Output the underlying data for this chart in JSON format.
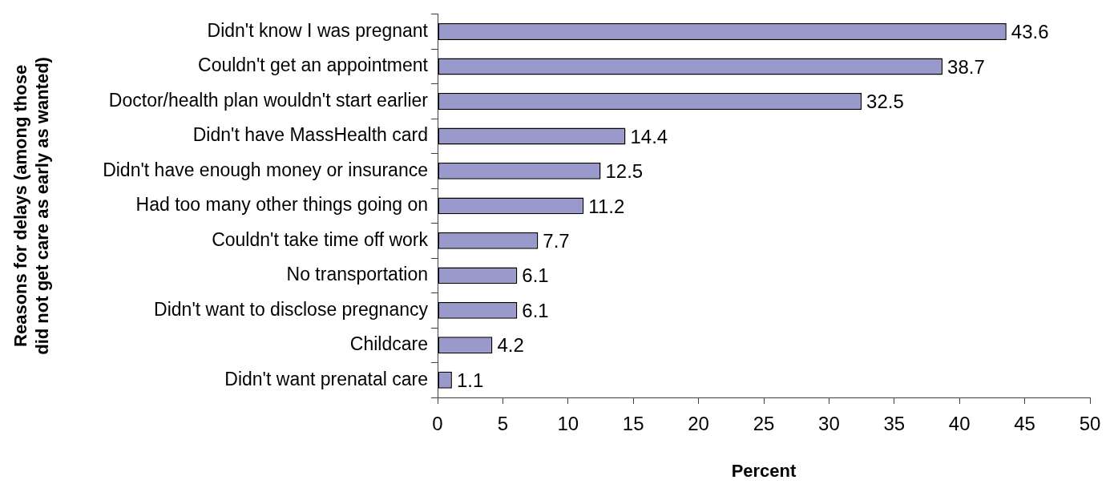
{
  "chart_data": {
    "type": "bar",
    "orientation": "horizontal",
    "categories": [
      "Didn't know I was pregnant",
      "Couldn't get an appointment",
      "Doctor/health plan wouldn't start earlier",
      "Didn't have MassHealth card",
      "Didn't have enough money or insurance",
      "Had too many other things going on",
      "Couldn't take time off work",
      "No transportation",
      "Didn't want to disclose pregnancy",
      "Childcare",
      "Didn't want prenatal care"
    ],
    "values": [
      43.6,
      38.7,
      32.5,
      14.4,
      12.5,
      11.2,
      7.7,
      6.1,
      6.1,
      4.2,
      1.1
    ],
    "color": "#9999cc",
    "xlim": [
      0,
      50
    ],
    "xticks": [
      0,
      5,
      10,
      15,
      20,
      25,
      30,
      35,
      40,
      45,
      50
    ],
    "xlabel": "Percent",
    "ylabel": "Reasons for delays (among those did not get care as early as wanted)",
    "data_labels": true
  }
}
